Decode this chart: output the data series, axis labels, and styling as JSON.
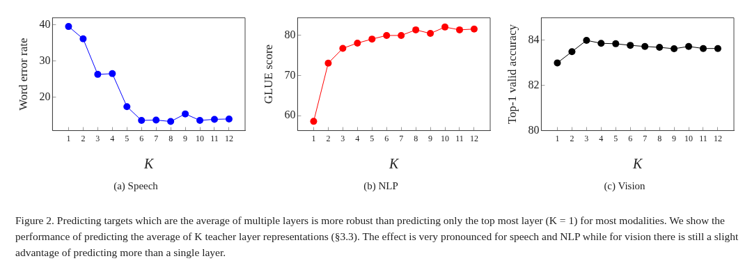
{
  "chart_data": [
    {
      "type": "line",
      "title": "(a) Speech",
      "xlabel": "K",
      "ylabel": "Word error rate",
      "x": [
        1,
        2,
        3,
        4,
        5,
        6,
        7,
        8,
        9,
        10,
        11,
        12
      ],
      "xlim": [
        -0.1,
        13.1
      ],
      "xticks": [
        1,
        2,
        3,
        4,
        5,
        6,
        7,
        8,
        9,
        10,
        11,
        12
      ],
      "ylim": [
        10.8,
        41.9
      ],
      "yticks": [
        20,
        30,
        40
      ],
      "marker": "circle",
      "series": [
        {
          "color": "#0000ff",
          "values": [
            39.5,
            36.1,
            26.3,
            26.5,
            17.4,
            13.6,
            13.7,
            13.3,
            15.4,
            13.6,
            13.9,
            14.0
          ]
        }
      ],
      "annotations": [
        "Figure 2. Predicting targets which are the average of multiple layers is more robust than predicting only the top most layer (K = 1) for most modalities. We show the performance of predicting the average of K teacher layer representations (§3.3). The effect is very pronounced for speech and NLP while for vision there is still a slight advantage of predicting more than a single layer."
      ]
    },
    {
      "type": "line",
      "title": "(b) NLP",
      "xlabel": "K",
      "ylabel": "GLUE score",
      "x": [
        1,
        2,
        3,
        4,
        5,
        6,
        7,
        8,
        9,
        10,
        11,
        12
      ],
      "xlim": [
        -0.1,
        13.1
      ],
      "xticks": [
        1,
        2,
        3,
        4,
        5,
        6,
        7,
        8,
        9,
        10,
        11,
        12
      ],
      "ylim": [
        56.3,
        84.4
      ],
      "yticks": [
        60,
        70,
        80
      ],
      "marker": "circle",
      "series": [
        {
          "color": "#ff0000",
          "values": [
            58.6,
            73.1,
            76.8,
            78.1,
            79.1,
            80.0,
            80.0,
            81.4,
            80.5,
            82.1,
            81.4,
            81.6
          ]
        }
      ]
    },
    {
      "type": "line",
      "title": "(c) Vision",
      "xlabel": "K",
      "ylabel": "Top-1 valid accuracy",
      "x": [
        1,
        2,
        3,
        4,
        5,
        6,
        7,
        8,
        9,
        10,
        11,
        12
      ],
      "xlim": [
        -0.1,
        13.1
      ],
      "xticks": [
        1,
        2,
        3,
        4,
        5,
        6,
        7,
        8,
        9,
        10,
        11,
        12
      ],
      "ylim": [
        80,
        85
      ],
      "yticks": [
        80,
        82,
        84
      ],
      "marker": "circle",
      "series": [
        {
          "color": "#000000",
          "values": [
            83.0,
            83.5,
            84.0,
            83.87,
            83.85,
            83.78,
            83.73,
            83.69,
            83.63,
            83.73,
            83.64,
            83.64
          ]
        }
      ]
    }
  ]
}
